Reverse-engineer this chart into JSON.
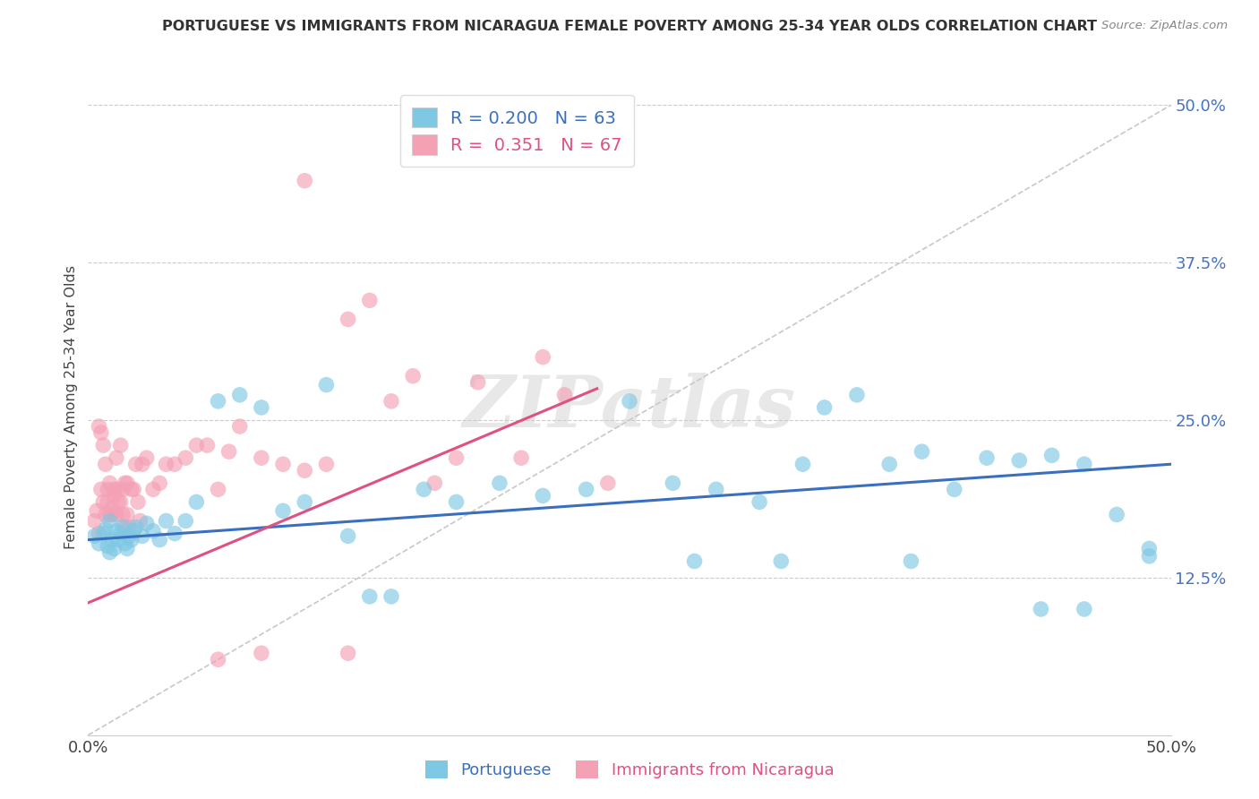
{
  "title": "PORTUGUESE VS IMMIGRANTS FROM NICARAGUA FEMALE POVERTY AMONG 25-34 YEAR OLDS CORRELATION CHART",
  "source_text": "Source: ZipAtlas.com",
  "ylabel": "Female Poverty Among 25-34 Year Olds",
  "xlim": [
    0.0,
    0.5
  ],
  "ylim": [
    0.0,
    0.52
  ],
  "y_ticks_right": [
    0.125,
    0.25,
    0.375,
    0.5
  ],
  "y_tick_labels_right": [
    "12.5%",
    "25.0%",
    "37.5%",
    "50.0%"
  ],
  "blue_R": "0.200",
  "blue_N": "63",
  "pink_R": "0.351",
  "pink_N": "67",
  "blue_color": "#7ec8e3",
  "pink_color": "#f4a0b5",
  "blue_line_color": "#3a6fbf",
  "pink_line_color": "#e05080",
  "ref_line_color": "#c8c8c8",
  "background_color": "#ffffff",
  "grid_color": "#cccccc",
  "watermark": "ZIPatlas",
  "watermark_color": "#cccccc",
  "blue_trend_x": [
    0.0,
    0.5
  ],
  "blue_trend_y": [
    0.155,
    0.215
  ],
  "pink_trend_x": [
    0.0,
    0.235
  ],
  "pink_trend_y": [
    0.105,
    0.275
  ],
  "blue_x": [
    0.003,
    0.005,
    0.007,
    0.008,
    0.009,
    0.01,
    0.01,
    0.011,
    0.012,
    0.013,
    0.014,
    0.015,
    0.016,
    0.017,
    0.018,
    0.019,
    0.02,
    0.021,
    0.022,
    0.025,
    0.027,
    0.03,
    0.033,
    0.036,
    0.04,
    0.045,
    0.05,
    0.06,
    0.07,
    0.08,
    0.09,
    0.1,
    0.11,
    0.12,
    0.13,
    0.14,
    0.155,
    0.17,
    0.19,
    0.21,
    0.23,
    0.25,
    0.27,
    0.29,
    0.31,
    0.33,
    0.34,
    0.355,
    0.37,
    0.385,
    0.4,
    0.415,
    0.43,
    0.445,
    0.46,
    0.475,
    0.49,
    0.28,
    0.32,
    0.38,
    0.44,
    0.46,
    0.49
  ],
  "blue_y": [
    0.158,
    0.152,
    0.16,
    0.163,
    0.15,
    0.145,
    0.17,
    0.155,
    0.148,
    0.162,
    0.155,
    0.16,
    0.165,
    0.152,
    0.148,
    0.158,
    0.155,
    0.162,
    0.165,
    0.158,
    0.168,
    0.162,
    0.155,
    0.17,
    0.16,
    0.17,
    0.185,
    0.265,
    0.27,
    0.26,
    0.178,
    0.185,
    0.278,
    0.158,
    0.11,
    0.11,
    0.195,
    0.185,
    0.2,
    0.19,
    0.195,
    0.265,
    0.2,
    0.195,
    0.185,
    0.215,
    0.26,
    0.27,
    0.215,
    0.225,
    0.195,
    0.22,
    0.218,
    0.222,
    0.215,
    0.175,
    0.142,
    0.138,
    0.138,
    0.138,
    0.1,
    0.1,
    0.148
  ],
  "pink_x": [
    0.003,
    0.004,
    0.005,
    0.005,
    0.006,
    0.006,
    0.007,
    0.007,
    0.008,
    0.008,
    0.009,
    0.009,
    0.01,
    0.01,
    0.011,
    0.011,
    0.012,
    0.012,
    0.013,
    0.013,
    0.014,
    0.014,
    0.015,
    0.015,
    0.016,
    0.016,
    0.017,
    0.017,
    0.018,
    0.018,
    0.019,
    0.02,
    0.021,
    0.022,
    0.023,
    0.024,
    0.025,
    0.027,
    0.03,
    0.033,
    0.036,
    0.04,
    0.045,
    0.05,
    0.055,
    0.06,
    0.065,
    0.07,
    0.08,
    0.09,
    0.1,
    0.11,
    0.12,
    0.13,
    0.14,
    0.15,
    0.16,
    0.17,
    0.18,
    0.2,
    0.21,
    0.22,
    0.24,
    0.1,
    0.06,
    0.08,
    0.12
  ],
  "pink_y": [
    0.17,
    0.178,
    0.16,
    0.245,
    0.195,
    0.24,
    0.185,
    0.23,
    0.175,
    0.215,
    0.195,
    0.185,
    0.175,
    0.2,
    0.18,
    0.175,
    0.195,
    0.19,
    0.175,
    0.22,
    0.185,
    0.195,
    0.23,
    0.185,
    0.195,
    0.175,
    0.2,
    0.165,
    0.175,
    0.2,
    0.165,
    0.195,
    0.195,
    0.215,
    0.185,
    0.17,
    0.215,
    0.22,
    0.195,
    0.2,
    0.215,
    0.215,
    0.22,
    0.23,
    0.23,
    0.195,
    0.225,
    0.245,
    0.22,
    0.215,
    0.21,
    0.215,
    0.33,
    0.345,
    0.265,
    0.285,
    0.2,
    0.22,
    0.28,
    0.22,
    0.3,
    0.27,
    0.2,
    0.44,
    0.06,
    0.065,
    0.065
  ]
}
